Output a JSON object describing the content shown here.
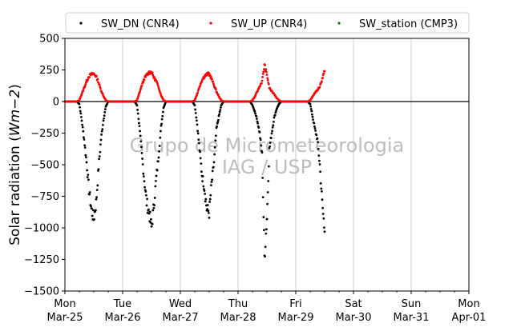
{
  "chart_data": {
    "type": "scatter",
    "ylabel_main": "Solar radiation (",
    "ylabel_unit": "Wm−2",
    "ylabel_close": ")",
    "ylim": [
      -1500,
      500
    ],
    "yticks": [
      500,
      250,
      0,
      -250,
      -500,
      -750,
      -1000,
      -1250,
      -1500
    ],
    "ytick_labels": [
      "500",
      "250",
      "0",
      "−250",
      "−500",
      "−750",
      "−1000",
      "−1250",
      "−1500"
    ],
    "xlim": [
      "2024-03-25",
      "2024-04-01"
    ],
    "xticks": [
      {
        "day": "Mon",
        "date": "Mar-25"
      },
      {
        "day": "Tue",
        "date": "Mar-26"
      },
      {
        "day": "Wed",
        "date": "Mar-27"
      },
      {
        "day": "Thu",
        "date": "Mar-28"
      },
      {
        "day": "Fri",
        "date": "Mar-29"
      },
      {
        "day": "Sat",
        "date": "Mar-30"
      },
      {
        "day": "Sun",
        "date": "Mar-31"
      },
      {
        "day": "Mon",
        "date": "Apr-01"
      }
    ],
    "grid": "vertical",
    "zero_line": true,
    "legend_position": "top",
    "watermark": [
      "Grupo de Micrometeorologia",
      "IAG / USP"
    ],
    "series": [
      {
        "name": "SW_DN (CNR4)",
        "color": "#000000",
        "points": [
          [
            "2024-03-25 00:00",
            0
          ],
          [
            "2024-03-25 05:00",
            0
          ],
          [
            "2024-03-25 06:00",
            -20
          ],
          [
            "2024-03-25 07:00",
            -150
          ],
          [
            "2024-03-25 08:00",
            -300
          ],
          [
            "2024-03-25 09:00",
            -480
          ],
          [
            "2024-03-25 10:00",
            -700
          ],
          [
            "2024-03-25 11:00",
            -850
          ],
          [
            "2024-03-25 12:00",
            -930
          ],
          [
            "2024-03-25 13:00",
            -800
          ],
          [
            "2024-03-25 14:00",
            -520
          ],
          [
            "2024-03-25 15:00",
            -300
          ],
          [
            "2024-03-25 16:00",
            -150
          ],
          [
            "2024-03-25 17:00",
            -40
          ],
          [
            "2024-03-25 18:00",
            0
          ],
          [
            "2024-03-25 23:00",
            0
          ],
          [
            "2024-03-26 05:00",
            0
          ],
          [
            "2024-03-26 06:00",
            -30
          ],
          [
            "2024-03-26 07:00",
            -200
          ],
          [
            "2024-03-26 08:00",
            -420
          ],
          [
            "2024-03-26 09:00",
            -620
          ],
          [
            "2024-03-26 10:00",
            -800
          ],
          [
            "2024-03-26 11:00",
            -880
          ],
          [
            "2024-03-26 12:00",
            -1000
          ],
          [
            "2024-03-26 13:00",
            -820
          ],
          [
            "2024-03-26 14:00",
            -600
          ],
          [
            "2024-03-26 15:00",
            -420
          ],
          [
            "2024-03-26 16:00",
            -200
          ],
          [
            "2024-03-26 17:00",
            -50
          ],
          [
            "2024-03-26 18:00",
            0
          ],
          [
            "2024-03-26 23:00",
            0
          ],
          [
            "2024-03-27 05:00",
            0
          ],
          [
            "2024-03-27 06:00",
            -30
          ],
          [
            "2024-03-27 07:00",
            -180
          ],
          [
            "2024-03-27 08:00",
            -380
          ],
          [
            "2024-03-27 09:00",
            -580
          ],
          [
            "2024-03-27 10:00",
            -680
          ],
          [
            "2024-03-27 11:00",
            -850
          ],
          [
            "2024-03-27 12:00",
            -880
          ],
          [
            "2024-03-27 13:00",
            -650
          ],
          [
            "2024-03-27 14:00",
            -480
          ],
          [
            "2024-03-27 15:00",
            -220
          ],
          [
            "2024-03-27 16:00",
            -120
          ],
          [
            "2024-03-27 17:00",
            -30
          ],
          [
            "2024-03-27 18:00",
            0
          ],
          [
            "2024-03-27 23:00",
            0
          ],
          [
            "2024-03-28 05:00",
            0
          ],
          [
            "2024-03-28 06:00",
            -30
          ],
          [
            "2024-03-28 07:00",
            -80
          ],
          [
            "2024-03-28 08:00",
            -150
          ],
          [
            "2024-03-28 09:00",
            -250
          ],
          [
            "2024-03-28 10:00",
            -420
          ],
          [
            "2024-03-28 11:00",
            -1230
          ],
          [
            "2024-03-28 12:00",
            -920
          ],
          [
            "2024-03-28 13:00",
            -380
          ],
          [
            "2024-03-28 14:00",
            -250
          ],
          [
            "2024-03-28 15:00",
            -130
          ],
          [
            "2024-03-28 16:00",
            -60
          ],
          [
            "2024-03-28 17:00",
            -20
          ],
          [
            "2024-03-28 18:00",
            0
          ],
          [
            "2024-03-28 23:00",
            0
          ],
          [
            "2024-03-29 05:00",
            0
          ],
          [
            "2024-03-29 06:00",
            -20
          ],
          [
            "2024-03-29 07:00",
            -120
          ],
          [
            "2024-03-29 08:00",
            -220
          ],
          [
            "2024-03-29 09:00",
            -300
          ],
          [
            "2024-03-29 10:00",
            -500
          ],
          [
            "2024-03-29 11:00",
            -800
          ],
          [
            "2024-03-29 12:00",
            -1030
          ]
        ]
      },
      {
        "name": "SW_UP (CNR4)",
        "color": "#ff0000",
        "points": [
          [
            "2024-03-25 00:00",
            0
          ],
          [
            "2024-03-25 05:00",
            0
          ],
          [
            "2024-03-25 06:00",
            10
          ],
          [
            "2024-03-25 07:00",
            60
          ],
          [
            "2024-03-25 08:00",
            110
          ],
          [
            "2024-03-25 09:00",
            160
          ],
          [
            "2024-03-25 10:00",
            200
          ],
          [
            "2024-03-25 11:00",
            215
          ],
          [
            "2024-03-25 12:00",
            220
          ],
          [
            "2024-03-25 13:00",
            200
          ],
          [
            "2024-03-25 14:00",
            150
          ],
          [
            "2024-03-25 15:00",
            90
          ],
          [
            "2024-03-25 16:00",
            45
          ],
          [
            "2024-03-25 17:00",
            10
          ],
          [
            "2024-03-25 18:00",
            0
          ],
          [
            "2024-03-25 23:00",
            0
          ],
          [
            "2024-03-26 05:00",
            0
          ],
          [
            "2024-03-26 06:00",
            10
          ],
          [
            "2024-03-26 07:00",
            70
          ],
          [
            "2024-03-26 08:00",
            130
          ],
          [
            "2024-03-26 09:00",
            180
          ],
          [
            "2024-03-26 10:00",
            210
          ],
          [
            "2024-03-26 11:00",
            230
          ],
          [
            "2024-03-26 12:00",
            235
          ],
          [
            "2024-03-26 13:00",
            190
          ],
          [
            "2024-03-26 14:00",
            160
          ],
          [
            "2024-03-26 15:00",
            110
          ],
          [
            "2024-03-26 16:00",
            50
          ],
          [
            "2024-03-26 17:00",
            10
          ],
          [
            "2024-03-26 18:00",
            0
          ],
          [
            "2024-03-26 23:00",
            0
          ],
          [
            "2024-03-27 05:00",
            0
          ],
          [
            "2024-03-27 06:00",
            10
          ],
          [
            "2024-03-27 07:00",
            60
          ],
          [
            "2024-03-27 08:00",
            120
          ],
          [
            "2024-03-27 09:00",
            170
          ],
          [
            "2024-03-27 10:00",
            200
          ],
          [
            "2024-03-27 11:00",
            215
          ],
          [
            "2024-03-27 12:00",
            220
          ],
          [
            "2024-03-27 13:00",
            180
          ],
          [
            "2024-03-27 14:00",
            130
          ],
          [
            "2024-03-27 15:00",
            80
          ],
          [
            "2024-03-27 16:00",
            40
          ],
          [
            "2024-03-27 17:00",
            10
          ],
          [
            "2024-03-27 18:00",
            0
          ],
          [
            "2024-03-27 23:00",
            0
          ],
          [
            "2024-03-28 05:00",
            0
          ],
          [
            "2024-03-28 06:00",
            10
          ],
          [
            "2024-03-28 07:00",
            40
          ],
          [
            "2024-03-28 08:00",
            80
          ],
          [
            "2024-03-28 09:00",
            120
          ],
          [
            "2024-03-28 10:00",
            160
          ],
          [
            "2024-03-28 11:00",
            290
          ],
          [
            "2024-03-28 12:00",
            210
          ],
          [
            "2024-03-28 13:00",
            110
          ],
          [
            "2024-03-28 14:00",
            80
          ],
          [
            "2024-03-28 15:00",
            60
          ],
          [
            "2024-03-28 16:00",
            30
          ],
          [
            "2024-03-28 17:00",
            10
          ],
          [
            "2024-03-28 18:00",
            0
          ],
          [
            "2024-03-28 23:00",
            0
          ],
          [
            "2024-03-29 05:00",
            0
          ],
          [
            "2024-03-29 06:00",
            10
          ],
          [
            "2024-03-29 07:00",
            40
          ],
          [
            "2024-03-29 08:00",
            70
          ],
          [
            "2024-03-29 09:00",
            90
          ],
          [
            "2024-03-29 10:00",
            120
          ],
          [
            "2024-03-29 11:00",
            180
          ],
          [
            "2024-03-29 12:00",
            240
          ]
        ]
      },
      {
        "name": "SW_station (CMP3)",
        "color": "#008000",
        "points": []
      }
    ]
  }
}
